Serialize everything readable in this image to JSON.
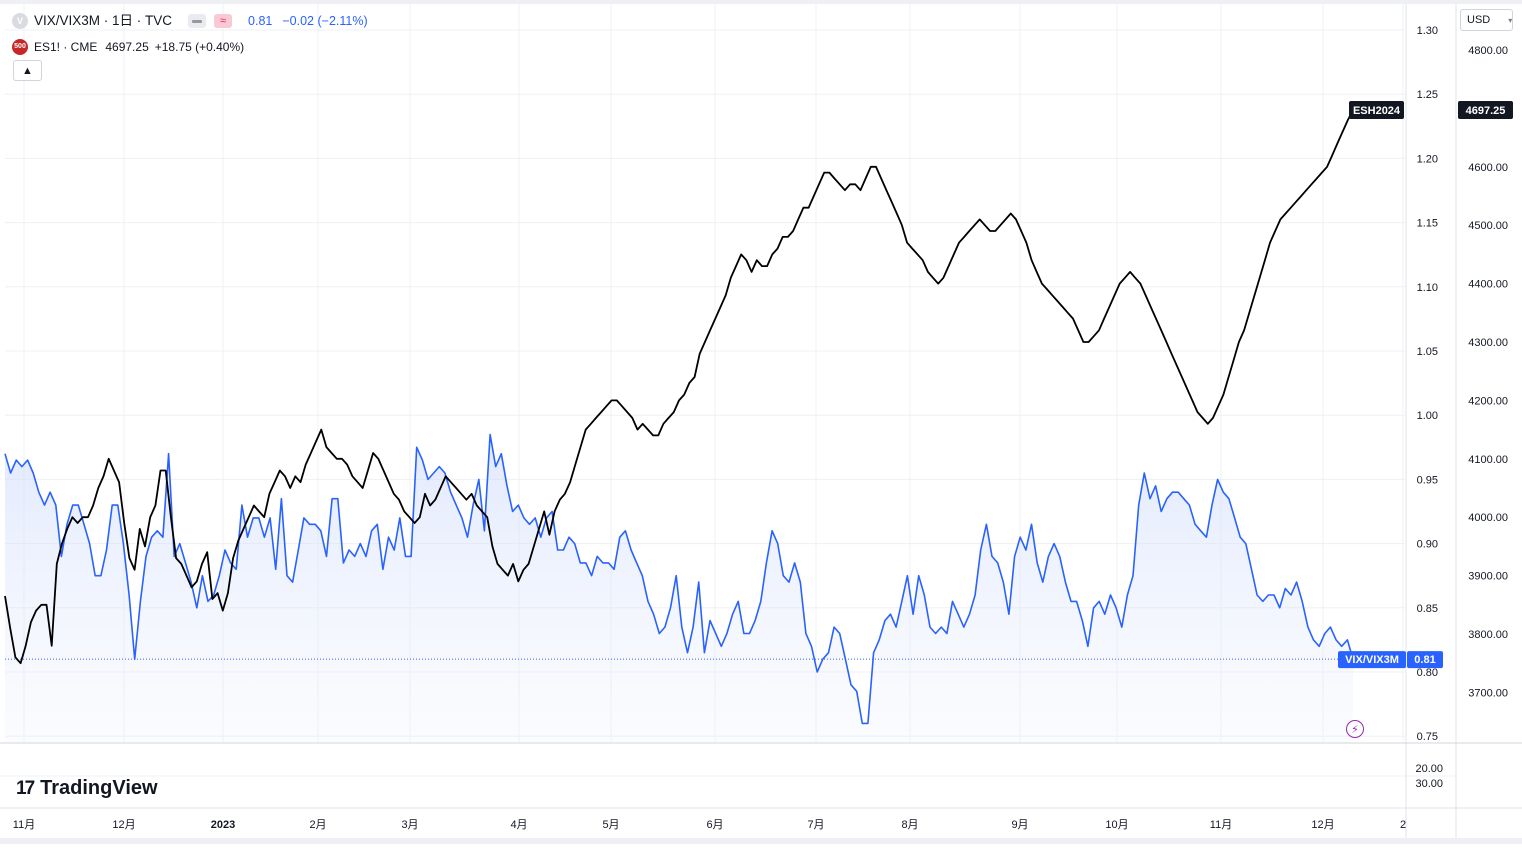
{
  "header": {
    "main_symbol_icon": "V",
    "main_symbol": "VIX/VIX3M · 1日 · TVC",
    "main_value": "0.81",
    "main_change": "−0.02 (−2.11%)",
    "compare_icon": "500",
    "compare_symbol": "ES1! · CME",
    "compare_value": "4697.25",
    "compare_change": "+18.75 (+0.40%)",
    "collapse_icon": "chevron-up-icon",
    "currency_label": "USD"
  },
  "colors": {
    "vix_line": "#2962ff",
    "es_line": "#000000",
    "vix_area_top": "#dde6fd",
    "grid": "#eef0f3"
  },
  "chart_data": {
    "type": "line",
    "title": "VIX/VIX3M · 1日 · TVC",
    "x_ticks": [
      "11月",
      "12月",
      "2023",
      "2月",
      "3月",
      "4月",
      "5月",
      "6月",
      "7月",
      "8月",
      "9月",
      "10月",
      "11月",
      "12月",
      "2"
    ],
    "left_axis": {
      "ticks": [
        "1.30",
        "1.25",
        "1.20",
        "1.15",
        "1.10",
        "1.05",
        "1.00",
        "0.95",
        "0.90",
        "0.85",
        "0.80",
        "0.75"
      ],
      "ylim": [
        0.75,
        1.3
      ],
      "series_label": "VIX/VIX3M",
      "last_value": "0.81"
    },
    "right_axis": {
      "ticks": [
        "4800.00",
        "4700.00",
        "4600.00",
        "4500.00",
        "4400.00",
        "4300.00",
        "4200.00",
        "4100.00",
        "4000.00",
        "3900.00",
        "3800.00",
        "3700.00"
      ],
      "ylim": [
        3650,
        4835
      ],
      "series_label": "ESH2024",
      "last_value": "4697.25"
    },
    "sub_axis_ticks": [
      "20.00",
      "30.00"
    ],
    "series": [
      {
        "name": "VIX/VIX3M",
        "axis": "left",
        "values": [
          0.97,
          0.955,
          0.965,
          0.96,
          0.965,
          0.955,
          0.94,
          0.93,
          0.94,
          0.93,
          0.89,
          0.915,
          0.93,
          0.93,
          0.915,
          0.9,
          0.875,
          0.875,
          0.895,
          0.93,
          0.93,
          0.9,
          0.86,
          0.81,
          0.855,
          0.89,
          0.905,
          0.91,
          0.905,
          0.97,
          0.89,
          0.9,
          0.885,
          0.87,
          0.85,
          0.875,
          0.855,
          0.86,
          0.875,
          0.895,
          0.885,
          0.88,
          0.93,
          0.905,
          0.92,
          0.92,
          0.905,
          0.92,
          0.88,
          0.935,
          0.875,
          0.87,
          0.895,
          0.92,
          0.915,
          0.915,
          0.91,
          0.89,
          0.935,
          0.935,
          0.885,
          0.895,
          0.89,
          0.9,
          0.89,
          0.91,
          0.915,
          0.88,
          0.905,
          0.895,
          0.92,
          0.89,
          0.89,
          0.975,
          0.965,
          0.95,
          0.955,
          0.96,
          0.955,
          0.94,
          0.93,
          0.92,
          0.905,
          0.93,
          0.95,
          0.91,
          0.985,
          0.96,
          0.97,
          0.945,
          0.925,
          0.93,
          0.92,
          0.915,
          0.92,
          0.905,
          0.92,
          0.925,
          0.895,
          0.895,
          0.905,
          0.9,
          0.885,
          0.885,
          0.875,
          0.89,
          0.885,
          0.885,
          0.88,
          0.905,
          0.91,
          0.895,
          0.885,
          0.875,
          0.855,
          0.845,
          0.83,
          0.835,
          0.85,
          0.875,
          0.835,
          0.815,
          0.835,
          0.87,
          0.815,
          0.84,
          0.83,
          0.82,
          0.83,
          0.845,
          0.855,
          0.83,
          0.83,
          0.84,
          0.855,
          0.885,
          0.91,
          0.9,
          0.875,
          0.87,
          0.885,
          0.87,
          0.83,
          0.82,
          0.8,
          0.81,
          0.815,
          0.835,
          0.83,
          0.81,
          0.79,
          0.785,
          0.76,
          0.76,
          0.815,
          0.825,
          0.84,
          0.845,
          0.835,
          0.855,
          0.875,
          0.845,
          0.875,
          0.86,
          0.835,
          0.83,
          0.835,
          0.83,
          0.855,
          0.845,
          0.835,
          0.845,
          0.86,
          0.895,
          0.915,
          0.89,
          0.885,
          0.87,
          0.845,
          0.89,
          0.905,
          0.895,
          0.915,
          0.885,
          0.87,
          0.89,
          0.9,
          0.89,
          0.87,
          0.855,
          0.855,
          0.84,
          0.82,
          0.85,
          0.855,
          0.845,
          0.86,
          0.85,
          0.835,
          0.86,
          0.875,
          0.93,
          0.955,
          0.935,
          0.945,
          0.925,
          0.935,
          0.94,
          0.94,
          0.935,
          0.93,
          0.915,
          0.91,
          0.905,
          0.93,
          0.95,
          0.94,
          0.935,
          0.92,
          0.905,
          0.9,
          0.88,
          0.86,
          0.855,
          0.86,
          0.86,
          0.85,
          0.865,
          0.86,
          0.87,
          0.855,
          0.835,
          0.825,
          0.82,
          0.83,
          0.835,
          0.825,
          0.82,
          0.825,
          0.81
        ]
      },
      {
        "name": "ESH2024",
        "axis": "right",
        "values": [
          3865,
          3810,
          3760,
          3750,
          3780,
          3820,
          3840,
          3850,
          3850,
          3780,
          3920,
          3955,
          3980,
          4000,
          3990,
          4000,
          4000,
          4020,
          4050,
          4070,
          4100,
          4080,
          4060,
          3990,
          3930,
          3910,
          3980,
          3950,
          4000,
          4020,
          4080,
          4080,
          4000,
          3930,
          3920,
          3900,
          3880,
          3890,
          3920,
          3940,
          3860,
          3870,
          3840,
          3870,
          3930,
          3960,
          3980,
          4000,
          4020,
          4010,
          4000,
          4040,
          4060,
          4080,
          4070,
          4050,
          4070,
          4060,
          4090,
          4110,
          4130,
          4150,
          4120,
          4110,
          4100,
          4100,
          4090,
          4070,
          4060,
          4050,
          4080,
          4110,
          4100,
          4080,
          4060,
          4040,
          4030,
          4010,
          4000,
          3990,
          4000,
          4040,
          4020,
          4030,
          4050,
          4070,
          4060,
          4050,
          4040,
          4030,
          4040,
          4020,
          4010,
          4000,
          3950,
          3920,
          3910,
          3900,
          3920,
          3890,
          3910,
          3920,
          3950,
          3980,
          4010,
          3970,
          4010,
          4030,
          4040,
          4060,
          4090,
          4120,
          4150,
          4160,
          4170,
          4180,
          4190,
          4200,
          4200,
          4190,
          4180,
          4170,
          4150,
          4160,
          4150,
          4140,
          4140,
          4160,
          4170,
          4180,
          4200,
          4210,
          4230,
          4240,
          4280,
          4300,
          4320,
          4340,
          4360,
          4380,
          4410,
          4430,
          4450,
          4440,
          4420,
          4440,
          4430,
          4430,
          4450,
          4460,
          4480,
          4480,
          4490,
          4510,
          4530,
          4530,
          4550,
          4570,
          4590,
          4590,
          4580,
          4570,
          4560,
          4570,
          4570,
          4560,
          4580,
          4600,
          4600,
          4580,
          4560,
          4540,
          4520,
          4500,
          4470,
          4460,
          4450,
          4440,
          4420,
          4410,
          4400,
          4410,
          4430,
          4450,
          4470,
          4480,
          4490,
          4500,
          4510,
          4500,
          4490,
          4490,
          4500,
          4510,
          4520,
          4510,
          4490,
          4470,
          4440,
          4420,
          4400,
          4390,
          4380,
          4370,
          4360,
          4350,
          4340,
          4320,
          4300,
          4300,
          4310,
          4320,
          4340,
          4360,
          4380,
          4400,
          4410,
          4420,
          4410,
          4400,
          4380,
          4360,
          4340,
          4320,
          4300,
          4280,
          4260,
          4240,
          4220,
          4200,
          4180,
          4170,
          4160,
          4170,
          4190,
          4210,
          4240,
          4270,
          4300,
          4320,
          4350,
          4380,
          4410,
          4440,
          4470,
          4490,
          4510,
          4520,
          4530,
          4540,
          4550,
          4560,
          4570,
          4580,
          4590,
          4600,
          4620,
          4640,
          4660,
          4680,
          4697.25
        ]
      }
    ],
    "grid": true,
    "legend": "top-left"
  }
}
